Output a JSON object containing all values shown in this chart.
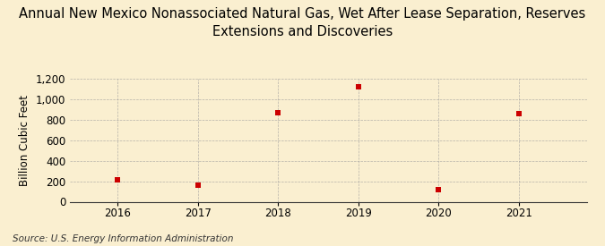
{
  "title": "Annual New Mexico Nonassociated Natural Gas, Wet After Lease Separation, Reserves\nExtensions and Discoveries",
  "ylabel": "Billion Cubic Feet",
  "source": "Source: U.S. Energy Information Administration",
  "years": [
    2016,
    2017,
    2018,
    2019,
    2020,
    2021
  ],
  "values": [
    215,
    163,
    868,
    1120,
    120,
    862
  ],
  "ylim": [
    0,
    1200
  ],
  "yticks": [
    0,
    200,
    400,
    600,
    800,
    1000,
    1200
  ],
  "marker_color": "#cc0000",
  "marker_size": 5,
  "background_color": "#faefd0",
  "grid_color": "#999999",
  "title_fontsize": 10.5,
  "label_fontsize": 8.5,
  "tick_fontsize": 8.5,
  "source_fontsize": 7.5
}
